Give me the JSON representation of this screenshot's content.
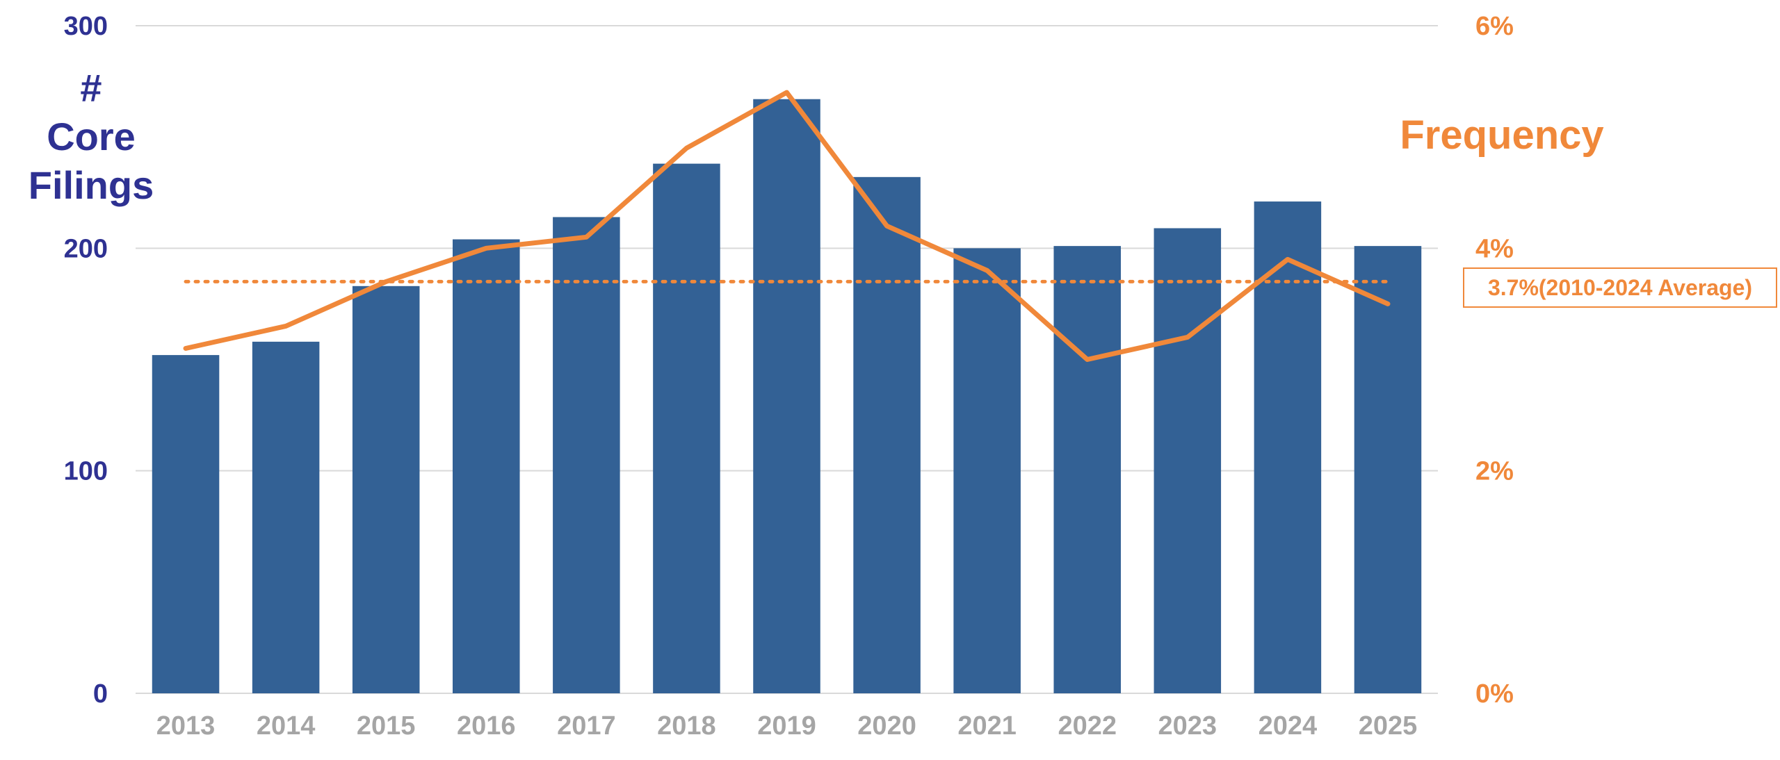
{
  "chart_data": {
    "type": "bar",
    "categories": [
      "2013",
      "2014",
      "2015",
      "2016",
      "2017",
      "2018",
      "2019",
      "2020",
      "2021",
      "2022",
      "2023",
      "2024",
      "2025"
    ],
    "series": [
      {
        "type": "bar",
        "axis": "left",
        "color": "#336195",
        "values": [
          152,
          158,
          183,
          204,
          214,
          238,
          267,
          232,
          200,
          201,
          209,
          221,
          201
        ]
      },
      {
        "type": "line",
        "axis": "right",
        "color": "#f0883a",
        "values": [
          3.1,
          3.3,
          3.7,
          4.0,
          4.1,
          4.9,
          5.4,
          4.2,
          3.8,
          3.0,
          3.2,
          3.9,
          3.5
        ]
      }
    ],
    "reference_line": {
      "axis": "right",
      "value": 3.7,
      "style": "dotted",
      "color": "#f0883a",
      "label": "3.7%(2010-2024 Average)"
    },
    "left_axis": {
      "title_lines": [
        "#",
        "Core",
        "Filings"
      ],
      "ylim": [
        0,
        300
      ],
      "ticks": [
        "0",
        "100",
        "200",
        "300"
      ],
      "color": "#2e3192"
    },
    "right_axis": {
      "title": "Frequency",
      "ylim": [
        0,
        6
      ],
      "ticks": [
        "0%",
        "2%",
        "4%",
        "6%"
      ],
      "color": "#f0883a"
    },
    "xtick_color": "#a5a5a5",
    "grid": true,
    "legend": "none"
  }
}
